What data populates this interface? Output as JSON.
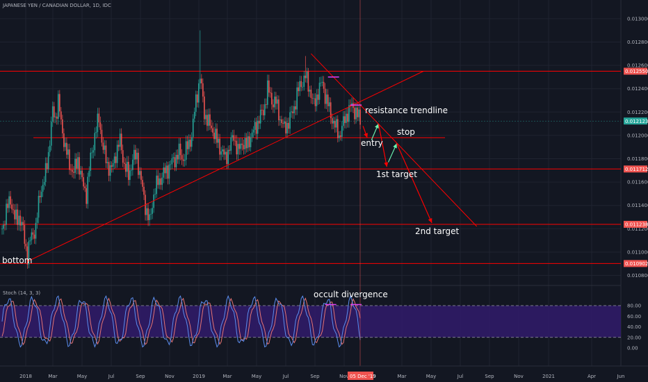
{
  "chart_data": {
    "type": "candlestick",
    "title": "JAPANESE YEN / CANADIAN DOLLAR, 1D, IDC",
    "colors": {
      "background": "#131722",
      "up": "#26a69a",
      "down": "#ef5350",
      "drawing": "#ff0000",
      "cursor_tag": "#ef5350",
      "last_price_tag": "#26a69a",
      "stoch_fill": "#311b6b",
      "stoch_k": "#5b8def",
      "stoch_d": "#e57373",
      "marker": "#e040fb",
      "arrow_up": "#69f0ae"
    },
    "price_axis": {
      "ticks": [
        "0.013000",
        "0.012800",
        "0.012600",
        "0.012400",
        "0.012200",
        "0.012000",
        "0.011800",
        "0.011600",
        "0.011400",
        "0.011200",
        "0.011000",
        "0.010800"
      ],
      "range": [
        0.01072,
        0.01316
      ]
    },
    "price_tags": [
      {
        "label": "0.012550",
        "value": 0.01255,
        "kind": "level"
      },
      {
        "label": "0.012123",
        "value": 0.012123,
        "kind": "last"
      },
      {
        "label": "0.011712",
        "value": 0.011712,
        "kind": "level"
      },
      {
        "label": "0.011238",
        "value": 0.011238,
        "kind": "level"
      },
      {
        "label": "0.010902",
        "value": 0.010902,
        "kind": "level"
      }
    ],
    "horizontal_levels": [
      0.01255,
      0.011712,
      0.011238,
      0.010902
    ],
    "time_axis": {
      "labels": [
        "2018",
        "Mar",
        "May",
        "Jul",
        "Sep",
        "Nov",
        "2019",
        "Mar",
        "May",
        "Jul",
        "Sep",
        "Nov",
        "Mar",
        "May",
        "Jul",
        "Sep",
        "Nov",
        "2021",
        "Apr",
        "Jun"
      ],
      "cursor_label": "05 Dec '19"
    },
    "price_path": [
      [
        0,
        0.0112
      ],
      [
        3,
        0.01135
      ],
      [
        6,
        0.01146
      ],
      [
        9,
        0.01128
      ],
      [
        12,
        0.01131
      ],
      [
        15,
        0.01118
      ],
      [
        18,
        0.01097
      ],
      [
        21,
        0.01115
      ],
      [
        24,
        0.0112
      ],
      [
        27,
        0.01152
      ],
      [
        30,
        0.0116
      ],
      [
        33,
        0.01185
      ],
      [
        36,
        0.0122
      ],
      [
        38,
        0.01215
      ],
      [
        40,
        0.0123
      ],
      [
        42,
        0.0121
      ],
      [
        45,
        0.0119
      ],
      [
        48,
        0.01175
      ],
      [
        51,
        0.01168
      ],
      [
        54,
        0.0118
      ],
      [
        57,
        0.0116
      ],
      [
        60,
        0.0115
      ],
      [
        63,
        0.0118
      ],
      [
        66,
        0.012
      ],
      [
        69,
        0.01215
      ],
      [
        72,
        0.01188
      ],
      [
        75,
        0.01175
      ],
      [
        78,
        0.0117
      ],
      [
        81,
        0.01185
      ],
      [
        84,
        0.01195
      ],
      [
        87,
        0.01175
      ],
      [
        90,
        0.01165
      ],
      [
        93,
        0.0118
      ],
      [
        96,
        0.01182
      ],
      [
        99,
        0.0116
      ],
      [
        102,
        0.0114
      ],
      [
        105,
        0.01125
      ],
      [
        108,
        0.0115
      ],
      [
        111,
        0.0116
      ],
      [
        114,
        0.01165
      ],
      [
        117,
        0.0117
      ],
      [
        120,
        0.01175
      ],
      [
        123,
        0.0118
      ],
      [
        126,
        0.01185
      ],
      [
        129,
        0.0118
      ],
      [
        132,
        0.0119
      ],
      [
        135,
        0.012
      ],
      [
        138,
        0.0123
      ],
      [
        141,
        0.0125
      ],
      [
        144,
        0.0122
      ],
      [
        147,
        0.0121
      ],
      [
        150,
        0.01205
      ],
      [
        153,
        0.01195
      ],
      [
        156,
        0.01188
      ],
      [
        159,
        0.0118
      ],
      [
        162,
        0.0119
      ],
      [
        165,
        0.012
      ],
      [
        168,
        0.01185
      ],
      [
        171,
        0.01195
      ],
      [
        174,
        0.0119
      ],
      [
        177,
        0.012
      ],
      [
        180,
        0.01205
      ],
      [
        183,
        0.01215
      ],
      [
        186,
        0.0122
      ],
      [
        189,
        0.0124
      ],
      [
        192,
        0.0123
      ],
      [
        195,
        0.01228
      ],
      [
        198,
        0.01215
      ],
      [
        201,
        0.01205
      ],
      [
        204,
        0.01212
      ],
      [
        207,
        0.0122
      ],
      [
        210,
        0.01235
      ],
      [
        213,
        0.01245
      ],
      [
        216,
        0.0125
      ],
      [
        219,
        0.0124
      ],
      [
        222,
        0.01225
      ],
      [
        225,
        0.01238
      ],
      [
        228,
        0.01245
      ],
      [
        231,
        0.0123
      ],
      [
        234,
        0.01218
      ],
      [
        237,
        0.01208
      ],
      [
        240,
        0.012
      ],
      [
        243,
        0.0121
      ],
      [
        246,
        0.0122
      ],
      [
        249,
        0.01225
      ],
      [
        252,
        0.0122
      ],
      [
        255,
        0.01212
      ]
    ],
    "spikes": [
      [
        141,
        0.0129
      ],
      [
        216,
        0.01268
      ]
    ],
    "annotations": [
      {
        "text": "resistance trendline",
        "value": 0.0122,
        "bar": 257
      },
      {
        "text": "stop",
        "value": 0.01205,
        "bar": 283
      },
      {
        "text": "entry",
        "value": 0.01195,
        "bar": 257
      },
      {
        "text": "1st target",
        "value": 0.0117,
        "bar": 268
      },
      {
        "text": "2nd target",
        "value": 0.01125,
        "bar": 296
      },
      {
        "text": "bottom",
        "value": 0.01096,
        "bar": 1
      }
    ],
    "indicator": {
      "name": "Stoch (14, 3, 3)",
      "ticks": [
        "80.00",
        "60.00",
        "40.00",
        "20.00",
        "0.00"
      ],
      "upper_band": 80,
      "lower_band": 20,
      "label": "occult divergence"
    }
  }
}
